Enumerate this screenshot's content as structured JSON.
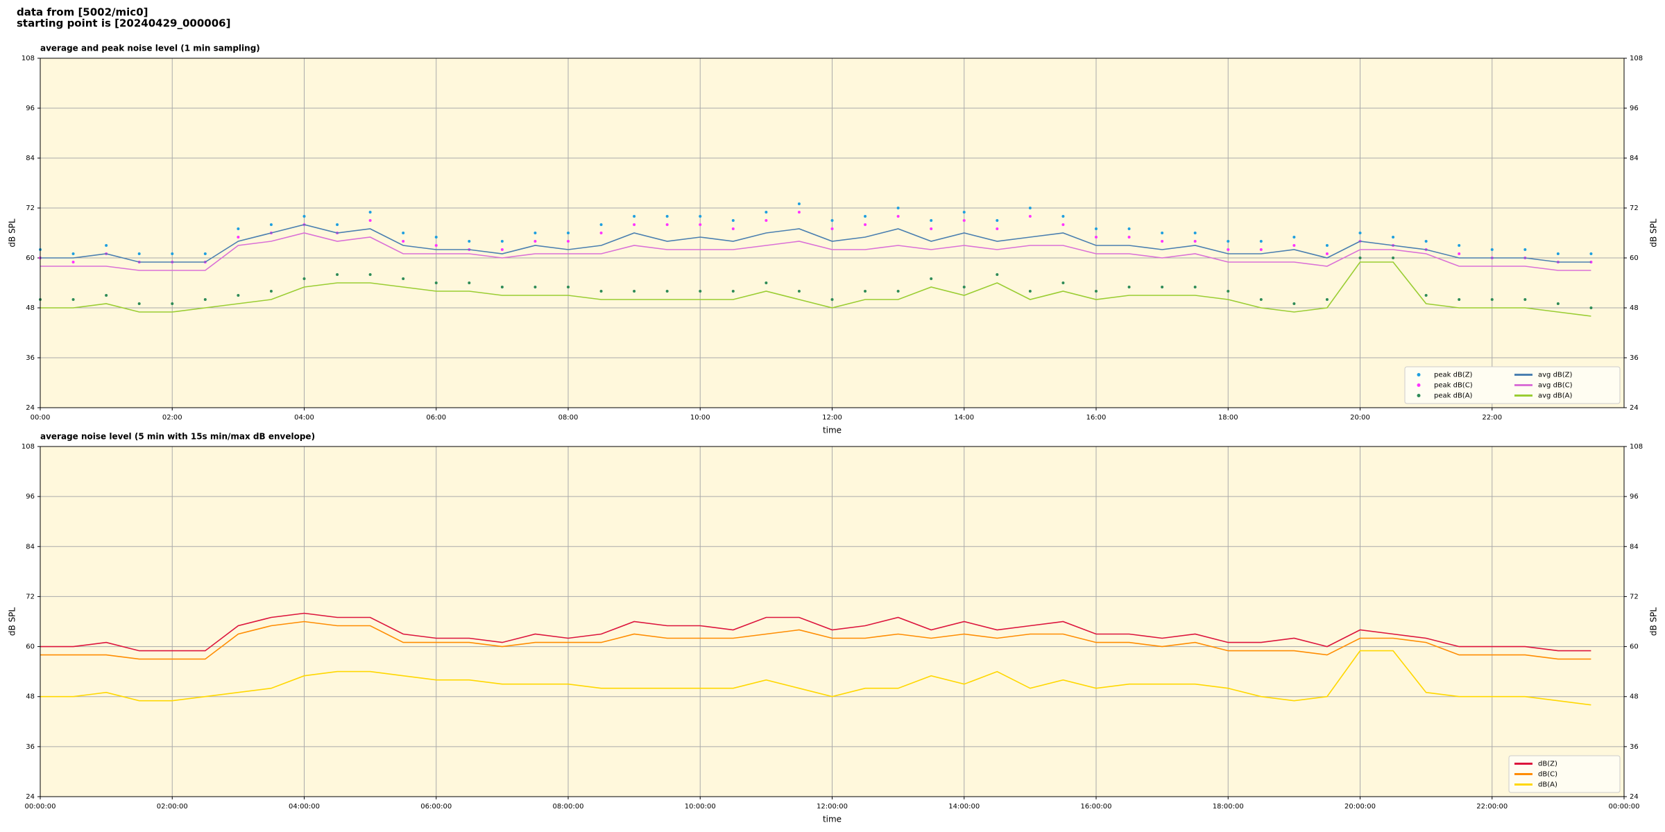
{
  "header": {
    "line1": "data from [5002/mic0]",
    "line2": "starting point is [20240429_000006]"
  },
  "chart_data": [
    {
      "type": "line",
      "title": "average and peak noise level (1 min sampling)",
      "xlabel": "time",
      "ylabel": "dB SPL",
      "x": [
        0,
        0.5,
        1,
        1.5,
        2,
        2.5,
        3,
        3.5,
        4,
        4.5,
        5,
        5.5,
        6,
        6.5,
        7,
        7.5,
        8,
        8.5,
        9,
        9.5,
        10,
        10.5,
        11,
        11.5,
        12,
        12.5,
        13,
        13.5,
        14,
        14.5,
        15,
        15.5,
        16,
        16.5,
        17,
        17.5,
        18,
        18.5,
        19,
        19.5,
        20,
        20.5,
        21,
        21.5,
        22,
        22.5,
        23,
        23.5
      ],
      "xlim": [
        0,
        24
      ],
      "xticks": [
        {
          "value": 0,
          "label": "00:00"
        },
        {
          "value": 2,
          "label": "02:00"
        },
        {
          "value": 4,
          "label": "04:00"
        },
        {
          "value": 6,
          "label": "06:00"
        },
        {
          "value": 8,
          "label": "08:00"
        },
        {
          "value": 10,
          "label": "10:00"
        },
        {
          "value": 12,
          "label": "12:00"
        },
        {
          "value": 14,
          "label": "14:00"
        },
        {
          "value": 16,
          "label": "16:00"
        },
        {
          "value": 18,
          "label": "18:00"
        },
        {
          "value": 20,
          "label": "20:00"
        },
        {
          "value": 22,
          "label": "22:00"
        }
      ],
      "ylim": [
        24,
        108
      ],
      "yticks": [
        24,
        36,
        48,
        60,
        72,
        84,
        96,
        108
      ],
      "grid": true,
      "legend": "lower right",
      "legend_columns": 2,
      "series": [
        {
          "name": "peak dB(Z)",
          "style": "scatter",
          "color": "#1f9fdf",
          "values": [
            62,
            61,
            63,
            61,
            61,
            61,
            67,
            68,
            70,
            68,
            71,
            66,
            65,
            64,
            64,
            66,
            66,
            68,
            70,
            70,
            70,
            69,
            71,
            73,
            69,
            70,
            72,
            69,
            71,
            69,
            72,
            70,
            67,
            67,
            66,
            66,
            64,
            64,
            65,
            63,
            66,
            65,
            64,
            63,
            62,
            62,
            61,
            61
          ]
        },
        {
          "name": "peak dB(C)",
          "style": "scatter",
          "color": "#ff33ff",
          "values": [
            60,
            59,
            61,
            59,
            59,
            59,
            65,
            66,
            68,
            66,
            69,
            64,
            63,
            62,
            62,
            64,
            64,
            66,
            68,
            68,
            68,
            67,
            69,
            71,
            67,
            68,
            70,
            67,
            69,
            67,
            70,
            68,
            65,
            65,
            64,
            64,
            62,
            62,
            63,
            61,
            64,
            63,
            62,
            61,
            60,
            60,
            59,
            59
          ]
        },
        {
          "name": "peak dB(A)",
          "style": "scatter",
          "color": "#2e8b57",
          "values": [
            50,
            50,
            51,
            49,
            49,
            50,
            51,
            52,
            55,
            56,
            56,
            55,
            54,
            54,
            53,
            53,
            53,
            52,
            52,
            52,
            52,
            52,
            54,
            52,
            50,
            52,
            52,
            55,
            53,
            56,
            52,
            54,
            52,
            53,
            53,
            53,
            52,
            50,
            49,
            50,
            60,
            60,
            51,
            50,
            50,
            50,
            49,
            48
          ]
        },
        {
          "name": "avg dB(Z)",
          "style": "line",
          "color": "#4a7fb0",
          "values": [
            60,
            60,
            61,
            59,
            59,
            59,
            64,
            66,
            68,
            66,
            67,
            63,
            62,
            62,
            61,
            63,
            62,
            63,
            66,
            64,
            65,
            64,
            66,
            67,
            64,
            65,
            67,
            64,
            66,
            64,
            65,
            66,
            63,
            63,
            62,
            63,
            61,
            61,
            62,
            60,
            64,
            63,
            62,
            60,
            60,
            60,
            59,
            59
          ]
        },
        {
          "name": "avg dB(C)",
          "style": "line",
          "color": "#da70d6",
          "values": [
            58,
            58,
            58,
            57,
            57,
            57,
            63,
            64,
            66,
            64,
            65,
            61,
            61,
            61,
            60,
            61,
            61,
            61,
            63,
            62,
            62,
            62,
            63,
            64,
            62,
            62,
            63,
            62,
            63,
            62,
            63,
            63,
            61,
            61,
            60,
            61,
            59,
            59,
            59,
            58,
            62,
            62,
            61,
            58,
            58,
            58,
            57,
            57
          ]
        },
        {
          "name": "avg dB(A)",
          "style": "line",
          "color": "#9acd32",
          "values": [
            48,
            48,
            49,
            47,
            47,
            48,
            49,
            50,
            53,
            54,
            54,
            53,
            52,
            52,
            51,
            51,
            51,
            50,
            50,
            50,
            50,
            50,
            52,
            50,
            48,
            50,
            50,
            53,
            51,
            54,
            50,
            52,
            50,
            51,
            51,
            51,
            50,
            48,
            47,
            48,
            59,
            59,
            49,
            48,
            48,
            48,
            47,
            46
          ]
        }
      ]
    },
    {
      "type": "line",
      "title": "average noise level (5 min with 15s min/max dB envelope)",
      "xlabel": "time",
      "ylabel": "dB SPL",
      "x": [
        0,
        0.5,
        1,
        1.5,
        2,
        2.5,
        3,
        3.5,
        4,
        4.5,
        5,
        5.5,
        6,
        6.5,
        7,
        7.5,
        8,
        8.5,
        9,
        9.5,
        10,
        10.5,
        11,
        11.5,
        12,
        12.5,
        13,
        13.5,
        14,
        14.5,
        15,
        15.5,
        16,
        16.5,
        17,
        17.5,
        18,
        18.5,
        19,
        19.5,
        20,
        20.5,
        21,
        21.5,
        22,
        22.5,
        23,
        23.5
      ],
      "xlim": [
        0,
        24
      ],
      "xticks": [
        {
          "value": 0,
          "label": "00:00:00"
        },
        {
          "value": 2,
          "label": "02:00:00"
        },
        {
          "value": 4,
          "label": "04:00:00"
        },
        {
          "value": 6,
          "label": "06:00:00"
        },
        {
          "value": 8,
          "label": "08:00:00"
        },
        {
          "value": 10,
          "label": "10:00:00"
        },
        {
          "value": 12,
          "label": "12:00:00"
        },
        {
          "value": 14,
          "label": "14:00:00"
        },
        {
          "value": 16,
          "label": "16:00:00"
        },
        {
          "value": 18,
          "label": "18:00:00"
        },
        {
          "value": 20,
          "label": "20:00:00"
        },
        {
          "value": 22,
          "label": "22:00:00"
        },
        {
          "value": 24,
          "label": "00:00:00"
        }
      ],
      "ylim": [
        24,
        108
      ],
      "yticks": [
        24,
        36,
        48,
        60,
        72,
        84,
        96,
        108
      ],
      "grid": true,
      "legend": "lower right",
      "legend_columns": 1,
      "series": [
        {
          "name": "dB(Z)",
          "style": "line",
          "color": "#dc143c",
          "values": [
            60,
            60,
            61,
            59,
            59,
            59,
            65,
            67,
            68,
            67,
            67,
            63,
            62,
            62,
            61,
            63,
            62,
            63,
            66,
            65,
            65,
            64,
            67,
            67,
            64,
            65,
            67,
            64,
            66,
            64,
            65,
            66,
            63,
            63,
            62,
            63,
            61,
            61,
            62,
            60,
            64,
            63,
            62,
            60,
            60,
            60,
            59,
            59
          ]
        },
        {
          "name": "dB(C)",
          "style": "line",
          "color": "#ff8c00",
          "values": [
            58,
            58,
            58,
            57,
            57,
            57,
            63,
            65,
            66,
            65,
            65,
            61,
            61,
            61,
            60,
            61,
            61,
            61,
            63,
            62,
            62,
            62,
            63,
            64,
            62,
            62,
            63,
            62,
            63,
            62,
            63,
            63,
            61,
            61,
            60,
            61,
            59,
            59,
            59,
            58,
            62,
            62,
            61,
            58,
            58,
            58,
            57,
            57
          ]
        },
        {
          "name": "dB(A)",
          "style": "line",
          "color": "#ffd700",
          "values": [
            48,
            48,
            49,
            47,
            47,
            48,
            49,
            50,
            53,
            54,
            54,
            53,
            52,
            52,
            51,
            51,
            51,
            50,
            50,
            50,
            50,
            50,
            52,
            50,
            48,
            50,
            50,
            53,
            51,
            54,
            50,
            52,
            50,
            51,
            51,
            51,
            50,
            48,
            47,
            48,
            59,
            59,
            49,
            48,
            48,
            48,
            47,
            46
          ]
        }
      ]
    }
  ]
}
